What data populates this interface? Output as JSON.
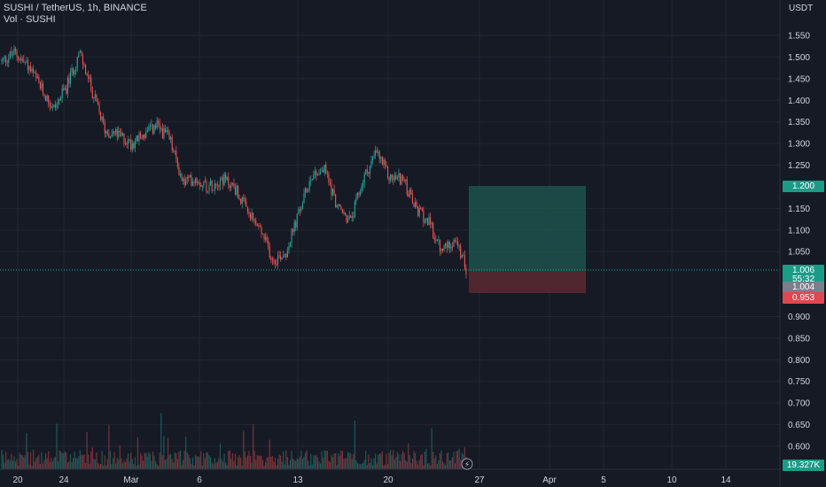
{
  "header": {
    "symbol_line": "SUSHI / TetherUS, 1h, BINANCE",
    "volume_line": "Vol · SUSHI"
  },
  "price_axis": {
    "currency": "USDT",
    "ticks": [
      "1.550",
      "1.500",
      "1.450",
      "1.400",
      "1.350",
      "1.300",
      "1.250",
      "1.150",
      "1.100",
      "1.050",
      "0.900",
      "0.850",
      "0.800",
      "0.750",
      "0.700",
      "0.650",
      "0.600"
    ]
  },
  "time_axis": {
    "labels": [
      "20",
      "24",
      "Mar",
      "6",
      "13",
      "20",
      "27",
      "Apr",
      "5",
      "10",
      "14"
    ]
  },
  "price_tags": {
    "target": "1.200",
    "current_price": "1.006",
    "countdown": "55:32",
    "entry": "1.004",
    "stop": "0.953",
    "volume": "19.327K"
  },
  "position_tool": {
    "type": "long",
    "entry": 1.004,
    "target": 1.2,
    "stop": 0.953
  },
  "colors": {
    "background": "#161a25",
    "up": "#26a69a",
    "down": "#ef5350",
    "profit_zone": "#1e5a52",
    "loss_zone": "#5c2a31",
    "text": "#d1d4dc"
  },
  "chart_data": {
    "type": "candlestick",
    "interval": "1h",
    "ylim": [
      0.58,
      1.57
    ],
    "close_anchors": [
      {
        "x": "Feb 17",
        "y": 1.49
      },
      {
        "x": "Feb 18",
        "y": 1.51
      },
      {
        "x": "Feb 19",
        "y": 1.48
      },
      {
        "x": "Feb 20",
        "y": 1.43
      },
      {
        "x": "Feb 21",
        "y": 1.38
      },
      {
        "x": "Feb 22",
        "y": 1.43
      },
      {
        "x": "Feb 23",
        "y": 1.51
      },
      {
        "x": "Feb 24",
        "y": 1.42
      },
      {
        "x": "Feb 25",
        "y": 1.33
      },
      {
        "x": "Feb 26",
        "y": 1.32
      },
      {
        "x": "Feb 27",
        "y": 1.3
      },
      {
        "x": "Feb 28",
        "y": 1.32
      },
      {
        "x": "Mar 1",
        "y": 1.34
      },
      {
        "x": "Mar 2",
        "y": 1.31
      },
      {
        "x": "Mar 3",
        "y": 1.21
      },
      {
        "x": "Mar 4",
        "y": 1.22
      },
      {
        "x": "Mar 5",
        "y": 1.2
      },
      {
        "x": "Mar 6",
        "y": 1.22
      },
      {
        "x": "Mar 7",
        "y": 1.2
      },
      {
        "x": "Mar 8",
        "y": 1.14
      },
      {
        "x": "Mar 9",
        "y": 1.1
      },
      {
        "x": "Mar 10",
        "y": 1.03
      },
      {
        "x": "Mar 11",
        "y": 1.05
      },
      {
        "x": "Mar 12",
        "y": 1.14
      },
      {
        "x": "Mar 13",
        "y": 1.23
      },
      {
        "x": "Mar 14",
        "y": 1.24
      },
      {
        "x": "Mar 15",
        "y": 1.15
      },
      {
        "x": "Mar 16",
        "y": 1.12
      },
      {
        "x": "Mar 17",
        "y": 1.22
      },
      {
        "x": "Mar 18",
        "y": 1.28
      },
      {
        "x": "Mar 19",
        "y": 1.22
      },
      {
        "x": "Mar 20",
        "y": 1.22
      },
      {
        "x": "Mar 21",
        "y": 1.15
      },
      {
        "x": "Mar 22",
        "y": 1.12
      },
      {
        "x": "Mar 23",
        "y": 1.05
      },
      {
        "x": "Mar 24",
        "y": 1.08
      },
      {
        "x": "Mar 25",
        "y": 1.006
      }
    ],
    "volume_last": "19.327K"
  }
}
